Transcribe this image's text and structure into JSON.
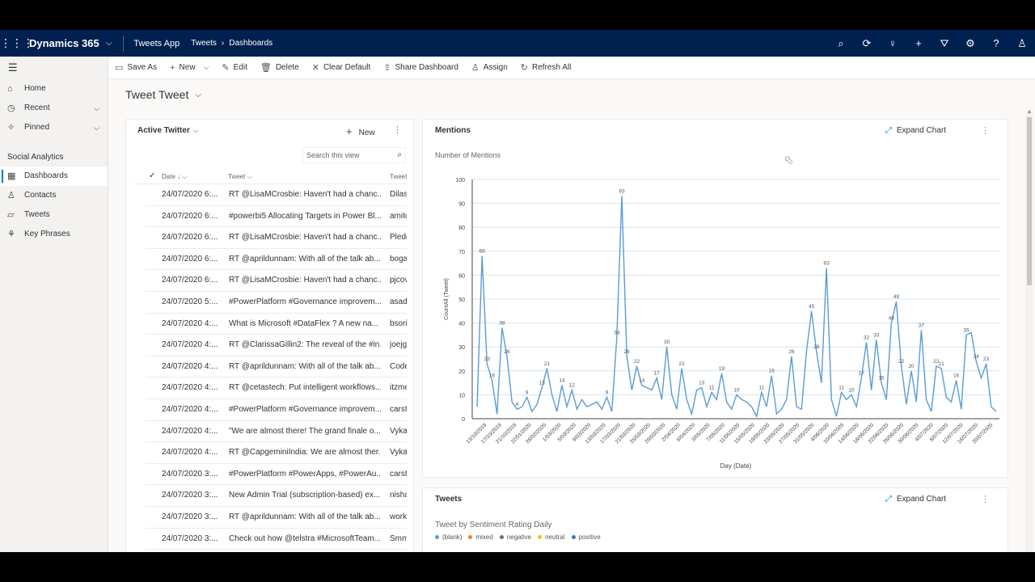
{
  "topbar": {
    "brand": "Dynamics 365",
    "app": "Tweets App",
    "breadcrumb": [
      "Tweets",
      "Dashboards"
    ],
    "icons": [
      "search-icon",
      "sync-icon",
      "lightbulb-icon",
      "add-icon",
      "filter-icon",
      "gear-icon",
      "help-icon",
      "user-icon"
    ]
  },
  "commands": [
    {
      "label": "Save As",
      "icon": "save-icon"
    },
    {
      "label": "New",
      "icon": "add-icon",
      "dropdown": true
    },
    {
      "label": "Edit",
      "icon": "edit-icon"
    },
    {
      "label": "Delete",
      "icon": "delete-icon"
    },
    {
      "label": "Clear Default",
      "icon": "close-icon"
    },
    {
      "label": "Share Dashboard",
      "icon": "share-icon"
    },
    {
      "label": "Assign",
      "icon": "assign-icon"
    },
    {
      "label": "Refresh All",
      "icon": "refresh-icon"
    }
  ],
  "nav": {
    "items": [
      {
        "label": "Home",
        "icon": "home-icon"
      },
      {
        "label": "Recent",
        "icon": "clock-icon",
        "expandable": true
      },
      {
        "label": "Pinned",
        "icon": "pin-icon",
        "expandable": true
      }
    ],
    "group": "Social Analytics",
    "group_items": [
      {
        "label": "Dashboards",
        "icon": "dashboard-icon",
        "active": true
      },
      {
        "label": "Contacts",
        "icon": "person-icon"
      },
      {
        "label": "Tweets",
        "icon": "tweet-icon"
      },
      {
        "label": "Key Phrases",
        "icon": "key-phrase-icon"
      }
    ]
  },
  "dashboard": {
    "title": "Tweet Tweet"
  },
  "list": {
    "title": "Active Twitter",
    "new_label": "New",
    "search_placeholder": "Search this view",
    "columns": [
      "Date",
      "Tweet",
      "Tweet"
    ],
    "rows": [
      {
        "date": "24/07/2020 6:...",
        "tweet": "RT @LisaMCrosbie: Haven't had a chanc...",
        "user": "Dilas"
      },
      {
        "date": "24/07/2020 6:...",
        "tweet": "#powerbi5 Allocating Targets in Power Bl...",
        "user": "amitc"
      },
      {
        "date": "24/07/2020 6:...",
        "tweet": "RT @LisaMCrosbie: Haven't had a chanc...",
        "user": "Pledg"
      },
      {
        "date": "24/07/2020 6:...",
        "tweet": "RT @aprildunnam: With all of the talk ab...",
        "user": "boga"
      },
      {
        "date": "24/07/2020 6:...",
        "tweet": "RT @LisaMCrosbie: Haven't had a chanc...",
        "user": "pjcov"
      },
      {
        "date": "24/07/2020 5:...",
        "tweet": "#PowerPlatform #Governance improvem...",
        "user": "asad"
      },
      {
        "date": "24/07/2020 4:...",
        "tweet": "What is Microsoft #DataFlex ? A new na...",
        "user": "bsori"
      },
      {
        "date": "24/07/2020 4:...",
        "tweet": "RT @ClarissaGillin2: The reveal of the #in...",
        "user": "joejg"
      },
      {
        "date": "24/07/2020 4:...",
        "tweet": "RT @aprildunnam: With all of the talk ab...",
        "user": "Code"
      },
      {
        "date": "24/07/2020 4:...",
        "tweet": "RT @cetastech: Put intelligent workflows...",
        "user": "itzme"
      },
      {
        "date": "24/07/2020 4:...",
        "tweet": "#PowerPlatform #Governance improvem...",
        "user": "carst"
      },
      {
        "date": "24/07/2020 4:...",
        "tweet": "\"We are almost there! The grand finale o...",
        "user": "Vyka"
      },
      {
        "date": "24/07/2020 4:...",
        "tweet": "RT @CapgeminiIndia: We are almost ther...",
        "user": "Vyka"
      },
      {
        "date": "24/07/2020 3:...",
        "tweet": "#PowerPlatform #PowerApps, #PowerAu...",
        "user": "carst"
      },
      {
        "date": "24/07/2020 3:...",
        "tweet": "New Admin Trial (subscription-based) ex...",
        "user": "nisha"
      },
      {
        "date": "24/07/2020 3:...",
        "tweet": "RT @aprildunnam: With all of the talk ab...",
        "user": "work"
      },
      {
        "date": "24/07/2020 3:...",
        "tweet": "Check out how @telstra #MicrosoftTeam...",
        "user": "Smm"
      }
    ]
  },
  "mentions_panel": {
    "title": "Mentions",
    "expand_label": "Expand Chart"
  },
  "chart_data": {
    "type": "line",
    "title": "Number of Mentions",
    "xlabel": "Day (Date)",
    "ylabel": "CountAll (Tweet)",
    "ylim": [
      0,
      100
    ],
    "yticks": [
      0,
      10,
      20,
      30,
      40,
      50,
      60,
      70,
      80,
      90,
      100
    ],
    "xticks": [
      "13/10/2019",
      "17/10/2019",
      "21/10/2019",
      "22/01/2020",
      "26/02/2020",
      "1/03/2020",
      "5/03/2020",
      "9/03/2020",
      "13/03/2020",
      "17/03/2020",
      "21/03/2020",
      "25/03/2020",
      "29/03/2020",
      "2/04/2020",
      "6/04/2020",
      "3/05/2020",
      "7/05/2020",
      "11/05/2020",
      "15/05/2020",
      "19/05/2020",
      "23/05/2020",
      "27/05/2020",
      "31/05/2020",
      "4/06/2020",
      "10/06/2020",
      "14/06/2020",
      "18/06/2020",
      "22/06/2020",
      "26/06/2020",
      "30/06/2020",
      "4/07/2020",
      "8/07/2020",
      "12/07/2020",
      "16/07/2020",
      "20/07/2020"
    ],
    "values": [
      5,
      68,
      23,
      16,
      2,
      38,
      26,
      7,
      4,
      5,
      9,
      3,
      6,
      13,
      21,
      10,
      3,
      14,
      5,
      12,
      4,
      8,
      5,
      6,
      7,
      4,
      9,
      3,
      34,
      93,
      26,
      12,
      22,
      14,
      13,
      12,
      17,
      8,
      30,
      10,
      4,
      21,
      8,
      2,
      12,
      13,
      5,
      11,
      8,
      19,
      7,
      4,
      10,
      8,
      7,
      5,
      1,
      11,
      5,
      18,
      2,
      4,
      8,
      26,
      5,
      4,
      28,
      45,
      28,
      15,
      63,
      8,
      1,
      11,
      8,
      10,
      5,
      17,
      32,
      12,
      33,
      15,
      8,
      40,
      49,
      22,
      6,
      20,
      7,
      37,
      8,
      3,
      22,
      21,
      9,
      7,
      16,
      4,
      35,
      36,
      24,
      17,
      23,
      5,
      3
    ],
    "data_labels": [
      {
        "i": 1,
        "v": 68
      },
      {
        "i": 2,
        "v": 23
      },
      {
        "i": 3,
        "v": 16
      },
      {
        "i": 5,
        "v": 38
      },
      {
        "i": 6,
        "v": 26
      },
      {
        "i": 8,
        "v": 4
      },
      {
        "i": 10,
        "v": 9
      },
      {
        "i": 13,
        "v": 13
      },
      {
        "i": 14,
        "v": 21
      },
      {
        "i": 17,
        "v": 14
      },
      {
        "i": 19,
        "v": 12
      },
      {
        "i": 26,
        "v": 9
      },
      {
        "i": 28,
        "v": 34
      },
      {
        "i": 29,
        "v": 93
      },
      {
        "i": 30,
        "v": 26
      },
      {
        "i": 32,
        "v": 22
      },
      {
        "i": 33,
        "v": 14
      },
      {
        "i": 36,
        "v": 17
      },
      {
        "i": 38,
        "v": 30
      },
      {
        "i": 41,
        "v": 21
      },
      {
        "i": 45,
        "v": 13
      },
      {
        "i": 47,
        "v": 11
      },
      {
        "i": 49,
        "v": 19
      },
      {
        "i": 52,
        "v": 10
      },
      {
        "i": 57,
        "v": 11
      },
      {
        "i": 59,
        "v": 18
      },
      {
        "i": 63,
        "v": 26
      },
      {
        "i": 67,
        "v": 45
      },
      {
        "i": 68,
        "v": 28
      },
      {
        "i": 70,
        "v": 63
      },
      {
        "i": 73,
        "v": 11
      },
      {
        "i": 75,
        "v": 10
      },
      {
        "i": 77,
        "v": 17
      },
      {
        "i": 78,
        "v": 32
      },
      {
        "i": 80,
        "v": 33
      },
      {
        "i": 81,
        "v": 15
      },
      {
        "i": 83,
        "v": 40
      },
      {
        "i": 84,
        "v": 49
      },
      {
        "i": 85,
        "v": 22
      },
      {
        "i": 87,
        "v": 20
      },
      {
        "i": 89,
        "v": 37
      },
      {
        "i": 92,
        "v": 22
      },
      {
        "i": 93,
        "v": 21
      },
      {
        "i": 96,
        "v": 16
      },
      {
        "i": 98,
        "v": 35
      },
      {
        "i": 100,
        "v": 24
      },
      {
        "i": 102,
        "v": 23
      }
    ],
    "color": "#5b9bd5",
    "grid": true
  },
  "tweets_panel": {
    "title": "Tweets",
    "expand_label": "Expand Chart",
    "subtitle": "Tweet by Sentiment Rating Daily",
    "legend": [
      {
        "label": "(blank)",
        "color": "#5b9bd5"
      },
      {
        "label": "mixed",
        "color": "#ed7d31"
      },
      {
        "label": "negative",
        "color": "#7f6084"
      },
      {
        "label": "neutral",
        "color": "#ffc000"
      },
      {
        "label": "positive",
        "color": "#4472c4"
      }
    ]
  }
}
